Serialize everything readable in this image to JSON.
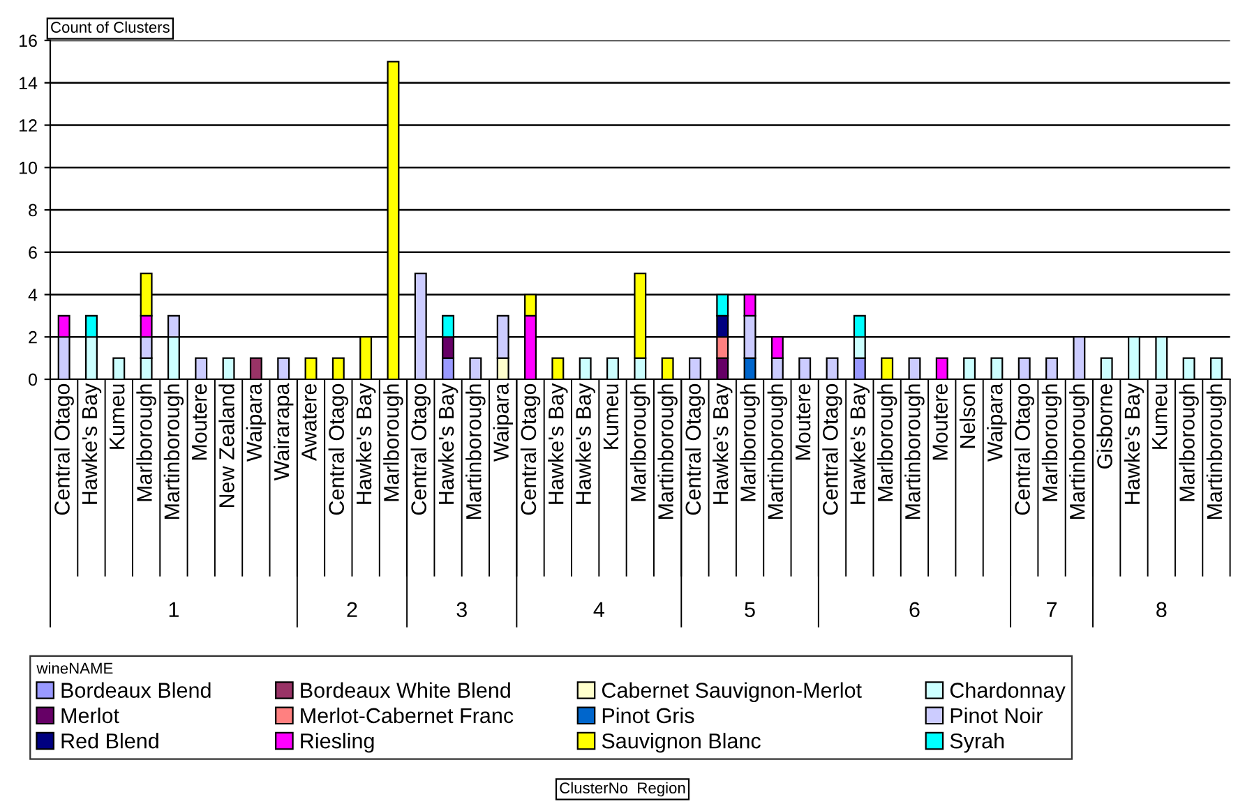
{
  "chart_data": {
    "type": "bar",
    "stacked": true,
    "ylabel": "Count of Clusters",
    "xlabel": [
      "ClusterNo",
      "Region"
    ],
    "legend_title": "wineNAME",
    "legend": "bottom",
    "grid": "y",
    "categories": [
      "Central Otago",
      "Hawke's Bay",
      "Kumeu",
      "Marlborough",
      "Martinborough",
      "Moutere",
      "New Zealand",
      "Waipara",
      "Wairarapa",
      "Awatere",
      "Central Otago",
      "Hawke's Bay",
      "Marlborough",
      "Central Otago",
      "Hawke's Bay",
      "Martinborough",
      "Waipara",
      "Central Otago",
      "Hawke's Bay",
      "Hawke's Bay",
      "Kumeu",
      "Marlborough",
      "Martinborough",
      "Central Otago",
      "Hawke's Bay",
      "Marlborough",
      "Martinborough",
      "Moutere",
      "Central Otago",
      "Hawke's Bay",
      "Marlborough",
      "Martinborough",
      "Moutere",
      "Nelson",
      "Waipara",
      "Central Otago",
      "Marlborough",
      "Martinborough",
      "Gisborne",
      "Hawke's Bay",
      "Kumeu",
      "Marlborough",
      "Martinborough"
    ],
    "annotations": [
      "1",
      "2",
      "3",
      "4",
      "5",
      "6",
      "7",
      "8"
    ],
    "ylim": [
      0,
      16
    ],
    "yticks": [
      0,
      2,
      4,
      6,
      8,
      10,
      12,
      14,
      16
    ],
    "series": [
      {
        "name": "Bordeaux Blend",
        "color": "#9999ff",
        "values": [
          null,
          null,
          null,
          null,
          null,
          null,
          null,
          null,
          null,
          null,
          null,
          null,
          null,
          null,
          1,
          null,
          null,
          null,
          null,
          null,
          null,
          null,
          null,
          null,
          null,
          null,
          null,
          null,
          null,
          1,
          null,
          null,
          null,
          null,
          null,
          null,
          null,
          null,
          null,
          null,
          null,
          null,
          null
        ]
      },
      {
        "name": "Bordeaux White Blend",
        "color": "#993366",
        "values": [
          null,
          null,
          null,
          null,
          null,
          null,
          null,
          1,
          null,
          null,
          null,
          null,
          null,
          null,
          null,
          null,
          null,
          null,
          null,
          null,
          null,
          null,
          null,
          null,
          null,
          null,
          null,
          null,
          null,
          null,
          null,
          null,
          null,
          null,
          null,
          null,
          null,
          null,
          null,
          null,
          null,
          null,
          null
        ]
      },
      {
        "name": "Cabernet Sauvignon-Merlot",
        "color": "#ffffcc",
        "values": [
          null,
          null,
          null,
          null,
          null,
          null,
          null,
          null,
          null,
          null,
          null,
          null,
          null,
          null,
          null,
          null,
          1,
          null,
          null,
          null,
          null,
          null,
          null,
          null,
          null,
          null,
          null,
          null,
          null,
          null,
          null,
          null,
          null,
          null,
          null,
          null,
          null,
          null,
          null,
          null,
          null,
          null,
          null
        ]
      },
      {
        "name": "Chardonnay",
        "color": "#ccffff",
        "values": [
          null,
          2,
          1,
          1,
          2,
          null,
          1,
          null,
          null,
          null,
          null,
          null,
          null,
          null,
          null,
          null,
          null,
          null,
          null,
          1,
          1,
          1,
          null,
          null,
          null,
          null,
          null,
          null,
          null,
          1,
          null,
          null,
          null,
          1,
          1,
          null,
          null,
          null,
          1,
          2,
          2,
          1,
          1
        ]
      },
      {
        "name": "Merlot",
        "color": "#660066",
        "values": [
          null,
          null,
          null,
          null,
          null,
          null,
          null,
          null,
          null,
          null,
          null,
          null,
          null,
          null,
          1,
          null,
          null,
          null,
          null,
          null,
          null,
          null,
          null,
          null,
          1,
          null,
          null,
          null,
          null,
          null,
          null,
          null,
          null,
          null,
          null,
          null,
          null,
          null,
          null,
          null,
          null,
          null,
          null
        ]
      },
      {
        "name": "Merlot-Cabernet Franc",
        "color": "#ff8080",
        "values": [
          null,
          null,
          null,
          null,
          null,
          null,
          null,
          null,
          null,
          null,
          null,
          null,
          null,
          null,
          null,
          null,
          null,
          null,
          null,
          null,
          null,
          null,
          null,
          null,
          1,
          null,
          null,
          null,
          null,
          null,
          null,
          null,
          null,
          null,
          null,
          null,
          null,
          null,
          null,
          null,
          null,
          null,
          null
        ]
      },
      {
        "name": "Pinot Gris",
        "color": "#0066cc",
        "values": [
          null,
          null,
          null,
          null,
          null,
          null,
          null,
          null,
          null,
          null,
          null,
          null,
          null,
          null,
          null,
          null,
          null,
          null,
          null,
          null,
          null,
          null,
          null,
          null,
          null,
          1,
          null,
          null,
          null,
          null,
          null,
          null,
          null,
          null,
          null,
          null,
          null,
          null,
          null,
          null,
          null,
          null,
          null
        ]
      },
      {
        "name": "Pinot Noir",
        "color": "#ccccff",
        "values": [
          2,
          null,
          null,
          1,
          1,
          1,
          null,
          null,
          1,
          null,
          null,
          null,
          null,
          5,
          null,
          1,
          2,
          null,
          null,
          null,
          null,
          null,
          null,
          1,
          null,
          2,
          1,
          1,
          1,
          null,
          null,
          1,
          null,
          null,
          null,
          1,
          1,
          2,
          null,
          null,
          null,
          null,
          null
        ]
      },
      {
        "name": "Red Blend",
        "color": "#000080",
        "values": [
          null,
          null,
          null,
          null,
          null,
          null,
          null,
          null,
          null,
          null,
          null,
          null,
          null,
          null,
          null,
          null,
          null,
          null,
          null,
          null,
          null,
          null,
          null,
          null,
          1,
          null,
          null,
          null,
          null,
          null,
          null,
          null,
          null,
          null,
          null,
          null,
          null,
          null,
          null,
          null,
          null,
          null,
          null
        ]
      },
      {
        "name": "Riesling",
        "color": "#ff00ff",
        "values": [
          1,
          null,
          null,
          1,
          null,
          null,
          null,
          null,
          null,
          null,
          null,
          null,
          null,
          null,
          null,
          null,
          null,
          3,
          null,
          null,
          null,
          null,
          null,
          null,
          null,
          1,
          1,
          null,
          null,
          null,
          null,
          null,
          1,
          null,
          null,
          null,
          null,
          null,
          null,
          null,
          null,
          null,
          null
        ]
      },
      {
        "name": "Sauvignon Blanc",
        "color": "#ffff00",
        "values": [
          null,
          null,
          null,
          2,
          null,
          null,
          null,
          null,
          null,
          1,
          1,
          2,
          15,
          null,
          null,
          null,
          null,
          1,
          1,
          null,
          null,
          4,
          1,
          null,
          null,
          null,
          null,
          null,
          null,
          null,
          1,
          null,
          null,
          null,
          null,
          null,
          null,
          null,
          null,
          null,
          null,
          null,
          null
        ]
      },
      {
        "name": "Syrah",
        "color": "#00ffff",
        "values": [
          null,
          1,
          null,
          null,
          null,
          null,
          null,
          null,
          null,
          null,
          null,
          null,
          null,
          null,
          1,
          null,
          null,
          null,
          null,
          null,
          null,
          null,
          null,
          null,
          1,
          null,
          null,
          null,
          null,
          1,
          null,
          null,
          null,
          null,
          null,
          null,
          null,
          null,
          null,
          null,
          null,
          null,
          null
        ]
      }
    ]
  }
}
